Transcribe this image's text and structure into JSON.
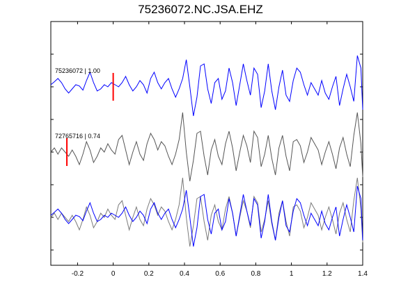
{
  "chart_data": {
    "type": "line",
    "title": "75236072.NC.JSA.EHZ",
    "xlabel": "",
    "ylabel": "",
    "xlim": [
      -0.35,
      1.4
    ],
    "x_ticks": [
      "-0.2",
      "0",
      "0.2",
      "0.4",
      "0.6",
      "0.8",
      "1",
      "1.2",
      "1.4"
    ],
    "x_tick_values": [
      -0.2,
      0,
      0.2,
      0.4,
      0.6,
      0.8,
      1.0,
      1.2,
      1.4
    ],
    "grid": false,
    "colors": {
      "blue": "#0000ff",
      "gray": "#555555",
      "gray_overlay": "#7a7a7a",
      "pick": "#ff0000"
    },
    "traces": [
      {
        "label": "75236072 | 1.00",
        "color": "#0000ff",
        "pick_time": 0.0,
        "x": [
          -0.35,
          -0.33,
          -0.31,
          -0.29,
          -0.27,
          -0.25,
          -0.23,
          -0.21,
          -0.19,
          -0.17,
          -0.15,
          -0.13,
          -0.11,
          -0.09,
          -0.07,
          -0.05,
          -0.03,
          -0.01,
          0.01,
          0.03,
          0.05,
          0.07,
          0.09,
          0.11,
          0.13,
          0.15,
          0.17,
          0.19,
          0.21,
          0.23,
          0.25,
          0.27,
          0.29,
          0.31,
          0.33,
          0.35,
          0.37,
          0.39,
          0.41,
          0.43,
          0.45,
          0.47,
          0.49,
          0.51,
          0.53,
          0.55,
          0.57,
          0.59,
          0.61,
          0.63,
          0.65,
          0.67,
          0.69,
          0.71,
          0.73,
          0.75,
          0.77,
          0.79,
          0.81,
          0.83,
          0.85,
          0.87,
          0.89,
          0.91,
          0.93,
          0.95,
          0.97,
          0.99,
          1.01,
          1.03,
          1.05,
          1.07,
          1.09,
          1.11,
          1.13,
          1.15,
          1.17,
          1.19,
          1.21,
          1.23,
          1.25,
          1.27,
          1.29,
          1.31,
          1.33,
          1.35,
          1.37,
          1.39,
          1.4
        ],
        "y": [
          0.05,
          0.12,
          0.2,
          0.1,
          -0.05,
          -0.15,
          -0.05,
          0.05,
          0.02,
          -0.08,
          0.15,
          0.35,
          0.1,
          -0.1,
          -0.05,
          0.05,
          0.0,
          0.1,
          0.05,
          0.0,
          0.1,
          0.25,
          0.05,
          -0.1,
          0.0,
          0.15,
          0.05,
          -0.15,
          0.2,
          0.35,
          0.1,
          -0.05,
          0.1,
          0.2,
          -0.05,
          -0.25,
          -0.05,
          0.2,
          0.65,
          0.0,
          -0.7,
          -0.25,
          0.5,
          0.55,
          -0.05,
          -0.4,
          0.1,
          0.2,
          -0.3,
          -0.1,
          0.45,
          0.1,
          -0.45,
          0.05,
          0.55,
          0.15,
          -0.2,
          0.45,
          0.3,
          -0.5,
          -0.1,
          0.55,
          -0.1,
          -0.55,
          0.0,
          0.4,
          -0.2,
          -0.35,
          0.15,
          0.45,
          0.35,
          0.05,
          -0.2,
          0.1,
          -0.05,
          -0.2,
          0.15,
          -0.15,
          -0.3,
          0.0,
          0.25,
          -0.45,
          -0.05,
          0.3,
          0.0,
          -0.35,
          0.75,
          0.45,
          -0.55
        ]
      },
      {
        "label": "72765716 | 0.74",
        "color": "#555555",
        "pick_time": -0.26,
        "x": [
          -0.35,
          -0.33,
          -0.31,
          -0.29,
          -0.27,
          -0.25,
          -0.23,
          -0.21,
          -0.19,
          -0.17,
          -0.15,
          -0.13,
          -0.11,
          -0.09,
          -0.07,
          -0.05,
          -0.03,
          -0.01,
          0.01,
          0.03,
          0.05,
          0.07,
          0.09,
          0.11,
          0.13,
          0.15,
          0.17,
          0.19,
          0.21,
          0.23,
          0.25,
          0.27,
          0.29,
          0.31,
          0.33,
          0.35,
          0.37,
          0.39,
          0.41,
          0.43,
          0.45,
          0.47,
          0.49,
          0.51,
          0.53,
          0.55,
          0.57,
          0.59,
          0.61,
          0.63,
          0.65,
          0.67,
          0.69,
          0.71,
          0.73,
          0.75,
          0.77,
          0.79,
          0.81,
          0.83,
          0.85,
          0.87,
          0.89,
          0.91,
          0.93,
          0.95,
          0.97,
          0.99,
          1.01,
          1.03,
          1.05,
          1.07,
          1.09,
          1.11,
          1.13,
          1.15,
          1.17,
          1.19,
          1.21,
          1.23,
          1.25,
          1.27,
          1.29,
          1.31,
          1.33,
          1.35,
          1.37,
          1.39,
          1.4
        ],
        "y": [
          0.0,
          0.1,
          -0.05,
          0.1,
          0.0,
          -0.1,
          0.05,
          -0.1,
          -0.3,
          -0.05,
          0.25,
          0.05,
          -0.25,
          -0.1,
          0.1,
          0.0,
          0.2,
          0.05,
          -0.05,
          0.3,
          0.4,
          0.05,
          -0.3,
          0.0,
          0.25,
          -0.05,
          -0.2,
          0.2,
          0.45,
          0.3,
          0.05,
          0.25,
          0.15,
          -0.1,
          -0.3,
          -0.05,
          0.3,
          0.95,
          0.0,
          -0.7,
          -0.2,
          0.45,
          0.5,
          -0.1,
          -0.55,
          0.05,
          0.3,
          -0.1,
          -0.3,
          0.2,
          0.5,
          0.1,
          -0.45,
          0.0,
          0.4,
          0.15,
          -0.25,
          0.5,
          0.35,
          -0.35,
          -0.05,
          0.4,
          -0.15,
          -0.55,
          0.1,
          0.4,
          -0.1,
          -0.45,
          0.25,
          0.3,
          0.15,
          -0.25,
          0.0,
          0.35,
          0.2,
          0.05,
          -0.3,
          0.0,
          0.25,
          -0.05,
          -0.4,
          0.1,
          0.35,
          -0.05,
          -0.35,
          0.4,
          0.95,
          0.2,
          -0.6
        ]
      }
    ]
  }
}
